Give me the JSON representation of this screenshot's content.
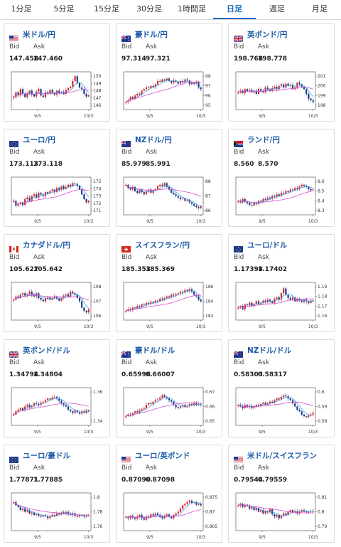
{
  "tabs": [
    {
      "label": "1分足",
      "active": false
    },
    {
      "label": "5分足",
      "active": false
    },
    {
      "label": "15分足",
      "active": false
    },
    {
      "label": "30分足",
      "active": false
    },
    {
      "label": "1時間足",
      "active": false
    },
    {
      "label": "日足",
      "active": true
    },
    {
      "label": "週足",
      "active": false
    },
    {
      "label": "月足",
      "active": false
    }
  ],
  "labels": {
    "bid": "Bid",
    "ask": "Ask"
  },
  "colors": {
    "accent": "#1a6fc0",
    "up": "#d9262c",
    "down": "#1d3c8a",
    "ma1": "#4aa3df",
    "ma2": "#d24fd2"
  },
  "cards": [
    {
      "pair": "米ドル/円",
      "flag": "us",
      "bid": "147.458",
      "ask": "147.460",
      "chart_data": {
        "type": "candlestick",
        "yticks": [
          "150",
          "149",
          "148",
          "147",
          "146"
        ],
        "xticks": [
          "9/5",
          "10/3"
        ],
        "path": [
          0.3,
          0.45,
          0.35,
          0.55,
          0.4,
          0.3,
          0.42,
          0.5,
          0.38,
          0.32,
          0.48,
          0.55,
          0.35,
          0.3,
          0.45,
          0.4,
          0.52,
          0.44,
          0.38,
          0.5,
          0.42,
          0.46,
          0.4,
          0.52,
          0.58,
          0.62,
          0.8,
          0.95,
          0.75,
          0.6,
          0.55,
          0.4,
          0.32,
          0.36
        ]
      }
    },
    {
      "pair": "豪ドル/円",
      "flag": "au",
      "bid": "97.314",
      "ask": "97.321",
      "chart_data": {
        "type": "candlestick",
        "yticks": [
          "98",
          "97",
          "96",
          "95"
        ],
        "xticks": [
          "9/5",
          "10/3"
        ],
        "path": [
          0.15,
          0.2,
          0.3,
          0.25,
          0.35,
          0.4,
          0.38,
          0.5,
          0.55,
          0.6,
          0.58,
          0.65,
          0.62,
          0.7,
          0.8,
          0.78,
          0.85,
          0.82,
          0.88,
          0.8,
          0.75,
          0.82,
          0.78,
          0.72,
          0.8,
          0.76,
          0.85,
          0.82,
          0.7,
          0.75,
          0.72,
          0.78,
          0.6,
          0.55
        ]
      }
    },
    {
      "pair": "英ポンド/円",
      "flag": "gb",
      "bid": "198.768",
      "ask": "198.778",
      "chart_data": {
        "type": "candlestick",
        "yticks": [
          "201",
          "200",
          "199",
          "198"
        ],
        "xticks": [
          "9/5",
          "10/3"
        ],
        "path": [
          0.45,
          0.5,
          0.42,
          0.55,
          0.48,
          0.52,
          0.45,
          0.5,
          0.4,
          0.55,
          0.5,
          0.45,
          0.6,
          0.55,
          0.5,
          0.58,
          0.62,
          0.55,
          0.65,
          0.7,
          0.6,
          0.72,
          0.65,
          0.68,
          0.55,
          0.6,
          0.75,
          0.7,
          0.62,
          0.55,
          0.4,
          0.25,
          0.2,
          0.15
        ]
      }
    },
    {
      "pair": "ユーロ/円",
      "flag": "eu",
      "bid": "173.113",
      "ask": "173.118",
      "chart_data": {
        "type": "candlestick",
        "yticks": [
          "175",
          "174",
          "173",
          "172",
          "171"
        ],
        "xticks": [
          "9/5",
          "10/3"
        ],
        "path": [
          0.35,
          0.2,
          0.25,
          0.3,
          0.22,
          0.4,
          0.45,
          0.35,
          0.5,
          0.55,
          0.45,
          0.6,
          0.55,
          0.5,
          0.62,
          0.58,
          0.65,
          0.7,
          0.62,
          0.75,
          0.7,
          0.8,
          0.72,
          0.78,
          0.85,
          0.8,
          0.9,
          0.88,
          0.82,
          0.7,
          0.55,
          0.4,
          0.3,
          0.35
        ]
      }
    },
    {
      "pair": "NZドル/円",
      "flag": "nz",
      "bid": "85.979",
      "ask": "85.991",
      "chart_data": {
        "type": "candlestick",
        "yticks": [
          "88",
          "87",
          "86"
        ],
        "xticks": [
          "9/5",
          "10/3"
        ],
        "path": [
          0.85,
          0.75,
          0.7,
          0.78,
          0.65,
          0.6,
          0.7,
          0.62,
          0.55,
          0.65,
          0.7,
          0.6,
          0.68,
          0.72,
          0.8,
          0.85,
          0.82,
          0.9,
          0.78,
          0.7,
          0.6,
          0.55,
          0.5,
          0.45,
          0.4,
          0.42,
          0.35,
          0.38,
          0.3,
          0.25,
          0.2,
          0.15,
          0.12,
          0.18
        ]
      }
    },
    {
      "pair": "ランド/円",
      "flag": "za",
      "bid": "8.560",
      "ask": "8.570",
      "chart_data": {
        "type": "candlestick",
        "yticks": [
          "8.6",
          "8.5",
          "8.4",
          "8.3"
        ],
        "xticks": [
          "9/5",
          "10/3"
        ],
        "path": [
          0.35,
          0.3,
          0.4,
          0.32,
          0.28,
          0.22,
          0.2,
          0.3,
          0.25,
          0.35,
          0.32,
          0.4,
          0.38,
          0.45,
          0.42,
          0.5,
          0.48,
          0.55,
          0.5,
          0.6,
          0.58,
          0.65,
          0.62,
          0.7,
          0.68,
          0.75,
          0.72,
          0.8,
          0.85,
          0.82,
          0.78,
          0.72,
          0.68,
          0.7
        ]
      }
    },
    {
      "pair": "カナダドル/円",
      "flag": "ca",
      "bid": "105.627",
      "ask": "105.642",
      "chart_data": {
        "type": "candlestick",
        "yticks": [
          "108",
          "107",
          "106"
        ],
        "xticks": [
          "9/5",
          "10/3"
        ],
        "path": [
          0.55,
          0.65,
          0.6,
          0.7,
          0.75,
          0.68,
          0.72,
          0.8,
          0.7,
          0.65,
          0.75,
          0.6,
          0.55,
          0.5,
          0.58,
          0.62,
          0.55,
          0.6,
          0.65,
          0.58,
          0.52,
          0.6,
          0.68,
          0.72,
          0.65,
          0.8,
          0.75,
          0.7,
          0.6,
          0.5,
          0.3,
          0.2,
          0.15,
          0.25
        ]
      }
    },
    {
      "pair": "スイスフラン/円",
      "flag": "ch",
      "bid": "185.353",
      "ask": "185.369",
      "chart_data": {
        "type": "candlestick",
        "yticks": [
          "186",
          "184",
          "182"
        ],
        "xticks": [
          "9/5",
          "10/3"
        ],
        "path": [
          0.2,
          0.25,
          0.22,
          0.3,
          0.28,
          0.35,
          0.32,
          0.4,
          0.38,
          0.45,
          0.42,
          0.48,
          0.45,
          0.52,
          0.5,
          0.58,
          0.55,
          0.6,
          0.65,
          0.62,
          0.7,
          0.68,
          0.72,
          0.75,
          0.8,
          0.78,
          0.85,
          0.82,
          0.88,
          0.8,
          0.7,
          0.65,
          0.55,
          0.5
        ]
      }
    },
    {
      "pair": "ユーロ/ドル",
      "flag": "eu",
      "bid": "1.17398",
      "ask": "1.17402",
      "chart_data": {
        "type": "candlestick",
        "yticks": [
          "1.19",
          "1.18",
          "1.17",
          "1.16"
        ],
        "xticks": [
          "9/5",
          "10/3"
        ],
        "path": [
          0.3,
          0.35,
          0.25,
          0.4,
          0.38,
          0.45,
          0.35,
          0.42,
          0.5,
          0.4,
          0.45,
          0.52,
          0.48,
          0.55,
          0.5,
          0.45,
          0.58,
          0.62,
          0.55,
          0.75,
          0.9,
          0.7,
          0.6,
          0.55,
          0.62,
          0.5,
          0.58,
          0.52,
          0.48,
          0.55,
          0.5,
          0.45,
          0.52,
          0.5
        ]
      }
    },
    {
      "pair": "英ポンド/ドル",
      "flag": "gb",
      "bid": "1.34794",
      "ask": "1.34804",
      "chart_data": {
        "type": "candlestick",
        "yticks": [
          "1.36",
          "1.34"
        ],
        "xticks": [
          "9/5",
          "10/3"
        ],
        "path": [
          0.25,
          0.35,
          0.4,
          0.45,
          0.38,
          0.5,
          0.55,
          0.48,
          0.52,
          0.6,
          0.58,
          0.55,
          0.62,
          0.65,
          0.7,
          0.75,
          0.72,
          0.78,
          0.8,
          0.75,
          0.68,
          0.6,
          0.55,
          0.5,
          0.4,
          0.35,
          0.3,
          0.38,
          0.32,
          0.28,
          0.35,
          0.3,
          0.38,
          0.35
        ]
      }
    },
    {
      "pair": "豪ドル/ドル",
      "flag": "au",
      "bid": "0.65998",
      "ask": "0.66007",
      "chart_data": {
        "type": "candlestick",
        "yticks": [
          "0.67",
          "0.66",
          "0.65"
        ],
        "xticks": [
          "9/5",
          "10/3"
        ],
        "path": [
          0.2,
          0.25,
          0.22,
          0.3,
          0.35,
          0.32,
          0.38,
          0.42,
          0.45,
          0.55,
          0.6,
          0.58,
          0.65,
          0.7,
          0.72,
          0.78,
          0.85,
          0.8,
          0.75,
          0.7,
          0.65,
          0.55,
          0.48,
          0.45,
          0.5,
          0.55,
          0.48,
          0.52,
          0.58,
          0.55,
          0.6,
          0.55,
          0.58,
          0.56
        ]
      }
    },
    {
      "pair": "NZドル/ドル",
      "flag": "nz",
      "bid": "0.58303",
      "ask": "0.58317",
      "chart_data": {
        "type": "candlestick",
        "yticks": [
          "0.6",
          "0.59",
          "0.58"
        ],
        "xticks": [
          "9/5",
          "10/3"
        ],
        "path": [
          0.55,
          0.5,
          0.45,
          0.55,
          0.48,
          0.52,
          0.45,
          0.5,
          0.55,
          0.52,
          0.58,
          0.62,
          0.55,
          0.6,
          0.65,
          0.62,
          0.7,
          0.75,
          0.72,
          0.8,
          0.85,
          0.82,
          0.75,
          0.7,
          0.6,
          0.5,
          0.4,
          0.35,
          0.25,
          0.2,
          0.18,
          0.22,
          0.25,
          0.3
        ]
      }
    },
    {
      "pair": "ユーロ/豪ドル",
      "flag": "eu",
      "bid": "1.77871",
      "ask": "1.77885",
      "chart_data": {
        "type": "candlestick",
        "yticks": [
          "1.8",
          "1.78",
          "1.76"
        ],
        "xticks": [
          "9/5",
          "10/3"
        ],
        "path": [
          0.8,
          0.7,
          0.65,
          0.55,
          0.6,
          0.5,
          0.55,
          0.45,
          0.48,
          0.4,
          0.42,
          0.38,
          0.35,
          0.4,
          0.36,
          0.3,
          0.35,
          0.4,
          0.38,
          0.45,
          0.42,
          0.48,
          0.45,
          0.5,
          0.42,
          0.4,
          0.45,
          0.38,
          0.35,
          0.4,
          0.38,
          0.35,
          0.38,
          0.4
        ]
      }
    },
    {
      "pair": "ユーロ/英ポンド",
      "flag": "us",
      "bid": "0.87090",
      "ask": "0.87098",
      "chart_data": {
        "type": "candlestick",
        "yticks": [
          "0.875",
          "0.87",
          "0.865"
        ],
        "xticks": [
          "9/5",
          "10/3"
        ],
        "path": [
          0.35,
          0.3,
          0.38,
          0.32,
          0.28,
          0.35,
          0.4,
          0.3,
          0.25,
          0.35,
          0.32,
          0.42,
          0.38,
          0.45,
          0.4,
          0.35,
          0.3,
          0.38,
          0.42,
          0.35,
          0.3,
          0.4,
          0.45,
          0.5,
          0.6,
          0.7,
          0.75,
          0.8,
          0.85,
          0.78,
          0.8,
          0.72,
          0.75,
          0.7
        ]
      }
    },
    {
      "pair": "米ドル/スイスフラン",
      "flag": "us",
      "bid": "0.79544",
      "ask": "0.79559",
      "chart_data": {
        "type": "candlestick",
        "yticks": [
          "0.81",
          "0.8",
          "0.79"
        ],
        "xticks": [
          "9/5",
          "10/3"
        ],
        "path": [
          0.7,
          0.75,
          0.65,
          0.72,
          0.68,
          0.6,
          0.65,
          0.55,
          0.62,
          0.5,
          0.55,
          0.45,
          0.52,
          0.48,
          0.58,
          0.42,
          0.35,
          0.4,
          0.3,
          0.38,
          0.45,
          0.4,
          0.5,
          0.55,
          0.48,
          0.52,
          0.45,
          0.5,
          0.55,
          0.52,
          0.48,
          0.5,
          0.52,
          0.5
        ]
      }
    }
  ]
}
